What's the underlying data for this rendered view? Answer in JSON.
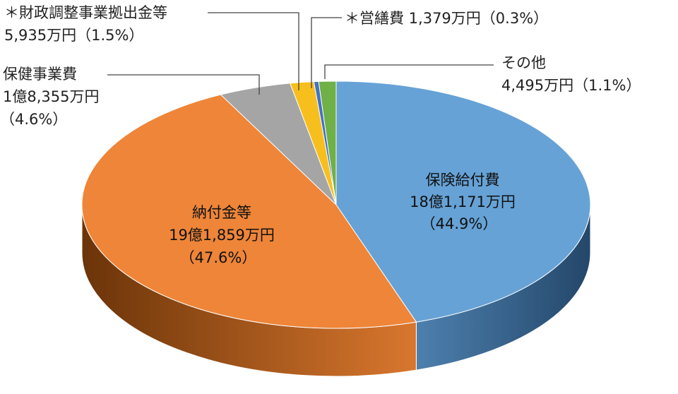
{
  "chart_data": {
    "type": "pie",
    "title": "",
    "slices": [
      {
        "name": "保険給付費",
        "amount": "18億1,171万円",
        "percent": "（44.9%）",
        "value": 44.9,
        "color": "#66a2d6",
        "side_color": "#3f6f98"
      },
      {
        "name": "納付金等",
        "amount": "19億1,859万円",
        "percent": "（47.6%）",
        "value": 47.6,
        "color": "#ee8538",
        "side_color": "#b05a18"
      },
      {
        "name": "保健事業費",
        "amount": "1億8,355万円",
        "percent": "（4.6%）",
        "value": 4.6,
        "color": "#a5a5a5",
        "side_color": "#6e6e6e"
      },
      {
        "name": "＊財政調整事業拠出金等",
        "amount": "5,935万円",
        "percent": "（1.5%）",
        "value": 1.5,
        "color": "#f6bf1d",
        "side_color": "#b48a10"
      },
      {
        "name": "＊営繕費",
        "amount": "1,379万円",
        "percent": "（0.3%）",
        "value": 0.3,
        "color": "#4472c4",
        "side_color": "#2c4d86"
      },
      {
        "name": "その他",
        "amount": "4,495万円",
        "percent": "（1.1%）",
        "value": 1.1,
        "color": "#6fb047",
        "side_color": "#4a7a2c"
      }
    ],
    "labels": {
      "kyufu_line1": "保険給付費",
      "kyufu_line2": "18億1,171万円",
      "kyufu_line3": "（44.9%）",
      "nofu_line1": "納付金等",
      "nofu_line2": "19億1,859万円",
      "nofu_line3": "（47.6%）",
      "hoken_line1": "保健事業費",
      "hoken_line2": "1億8,355万円",
      "hoken_line3": "（4.6%）",
      "zaisei_line1": "＊財政調整事業拠出金等",
      "zaisei_line2": "5,935万円（1.5%）",
      "eizen_line1": "＊営繕費 1,379万円（0.3%）",
      "other_line1": "その他",
      "other_line2": "4,495万円（1.1%）"
    }
  }
}
